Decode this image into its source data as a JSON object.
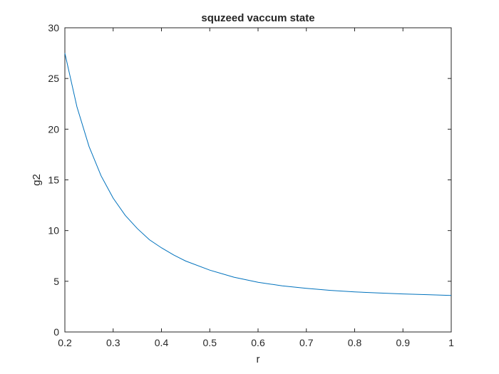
{
  "chart_data": {
    "type": "line",
    "title": "squzeed vaccum state",
    "xlabel": "r",
    "ylabel": "g2",
    "xlim": [
      0.2,
      1
    ],
    "ylim": [
      0,
      30
    ],
    "xticks": [
      0.2,
      0.3,
      0.4,
      0.5,
      0.6,
      0.7,
      0.8,
      0.9,
      1
    ],
    "xtick_labels": [
      "0.2",
      "0.3",
      "0.4",
      "0.5",
      "0.6",
      "0.7",
      "0.8",
      "0.9",
      "1"
    ],
    "yticks": [
      0,
      5,
      10,
      15,
      20,
      25,
      30
    ],
    "ytick_labels": [
      "0",
      "5",
      "10",
      "15",
      "20",
      "25",
      "30"
    ],
    "grid": false,
    "box": true,
    "series": [
      {
        "color": "#0072bd",
        "x": [
          0.2,
          0.225,
          0.25,
          0.275,
          0.3,
          0.325,
          0.35,
          0.375,
          0.4,
          0.425,
          0.45,
          0.5,
          0.55,
          0.6,
          0.65,
          0.7,
          0.75,
          0.8,
          0.85,
          0.9,
          0.95,
          1.0
        ],
        "y": [
          27.5,
          22.2,
          18.3,
          15.4,
          13.2,
          11.5,
          10.2,
          9.1,
          8.3,
          7.6,
          7.0,
          6.1,
          5.4,
          4.9,
          4.55,
          4.3,
          4.1,
          3.95,
          3.85,
          3.75,
          3.68,
          3.6
        ]
      }
    ]
  }
}
